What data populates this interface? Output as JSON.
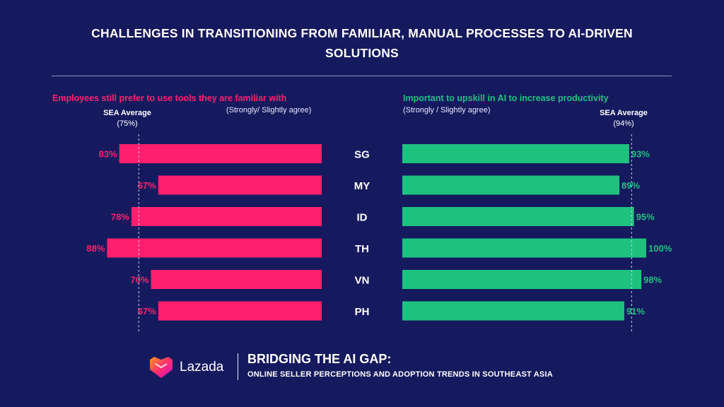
{
  "title_line1": "CHALLENGES IN TRANSITIONING FROM FAMILIAR, MANUAL PROCESSES TO AI-DRIVEN",
  "title_line2": "SOLUTIONS",
  "colors": {
    "background": "#151a5e",
    "left_bar": "#ff1f6e",
    "right_bar": "#1fc17f",
    "text": "#ffffff"
  },
  "left_panel": {
    "heading": "Employees still prefer to use tools they are familiar with",
    "subheading": "(Strongly/ Slightly agree)",
    "avg_label": "SEA Average",
    "avg_value": "(75%)"
  },
  "right_panel": {
    "heading": "Important to upskill in AI to increase productivity",
    "subheading": "(Strongly / Slightly agree)",
    "avg_label": "SEA Average",
    "avg_value": "(94%)"
  },
  "chart_data": {
    "type": "bar",
    "categories": [
      "SG",
      "MY",
      "ID",
      "TH",
      "VN",
      "PH"
    ],
    "series": [
      {
        "name": "Employees still prefer to use tools they are familiar with",
        "values": [
          83,
          67,
          78,
          88,
          70,
          67
        ],
        "labels": [
          "83%",
          "67%",
          "78%",
          "88%",
          "70%",
          "67%"
        ],
        "average": 75,
        "direction": "left"
      },
      {
        "name": "Important to upskill in AI to increase productivity",
        "values": [
          93,
          89,
          95,
          100,
          98,
          91
        ],
        "labels": [
          "93%",
          "89%",
          "95%",
          "100%",
          "98%",
          "91%"
        ],
        "average": 94,
        "direction": "right"
      }
    ],
    "ylim": [
      0,
      100
    ],
    "grid": false,
    "legend": "none"
  },
  "footer": {
    "brand": "Lazada",
    "title": "BRIDGING THE AI GAP:",
    "subtitle": "ONLINE SELLER PERCEPTIONS AND ADOPTION TRENDS IN SOUTHEAST ASIA",
    "logo_icon": "lazada-heart-logo-icon"
  }
}
